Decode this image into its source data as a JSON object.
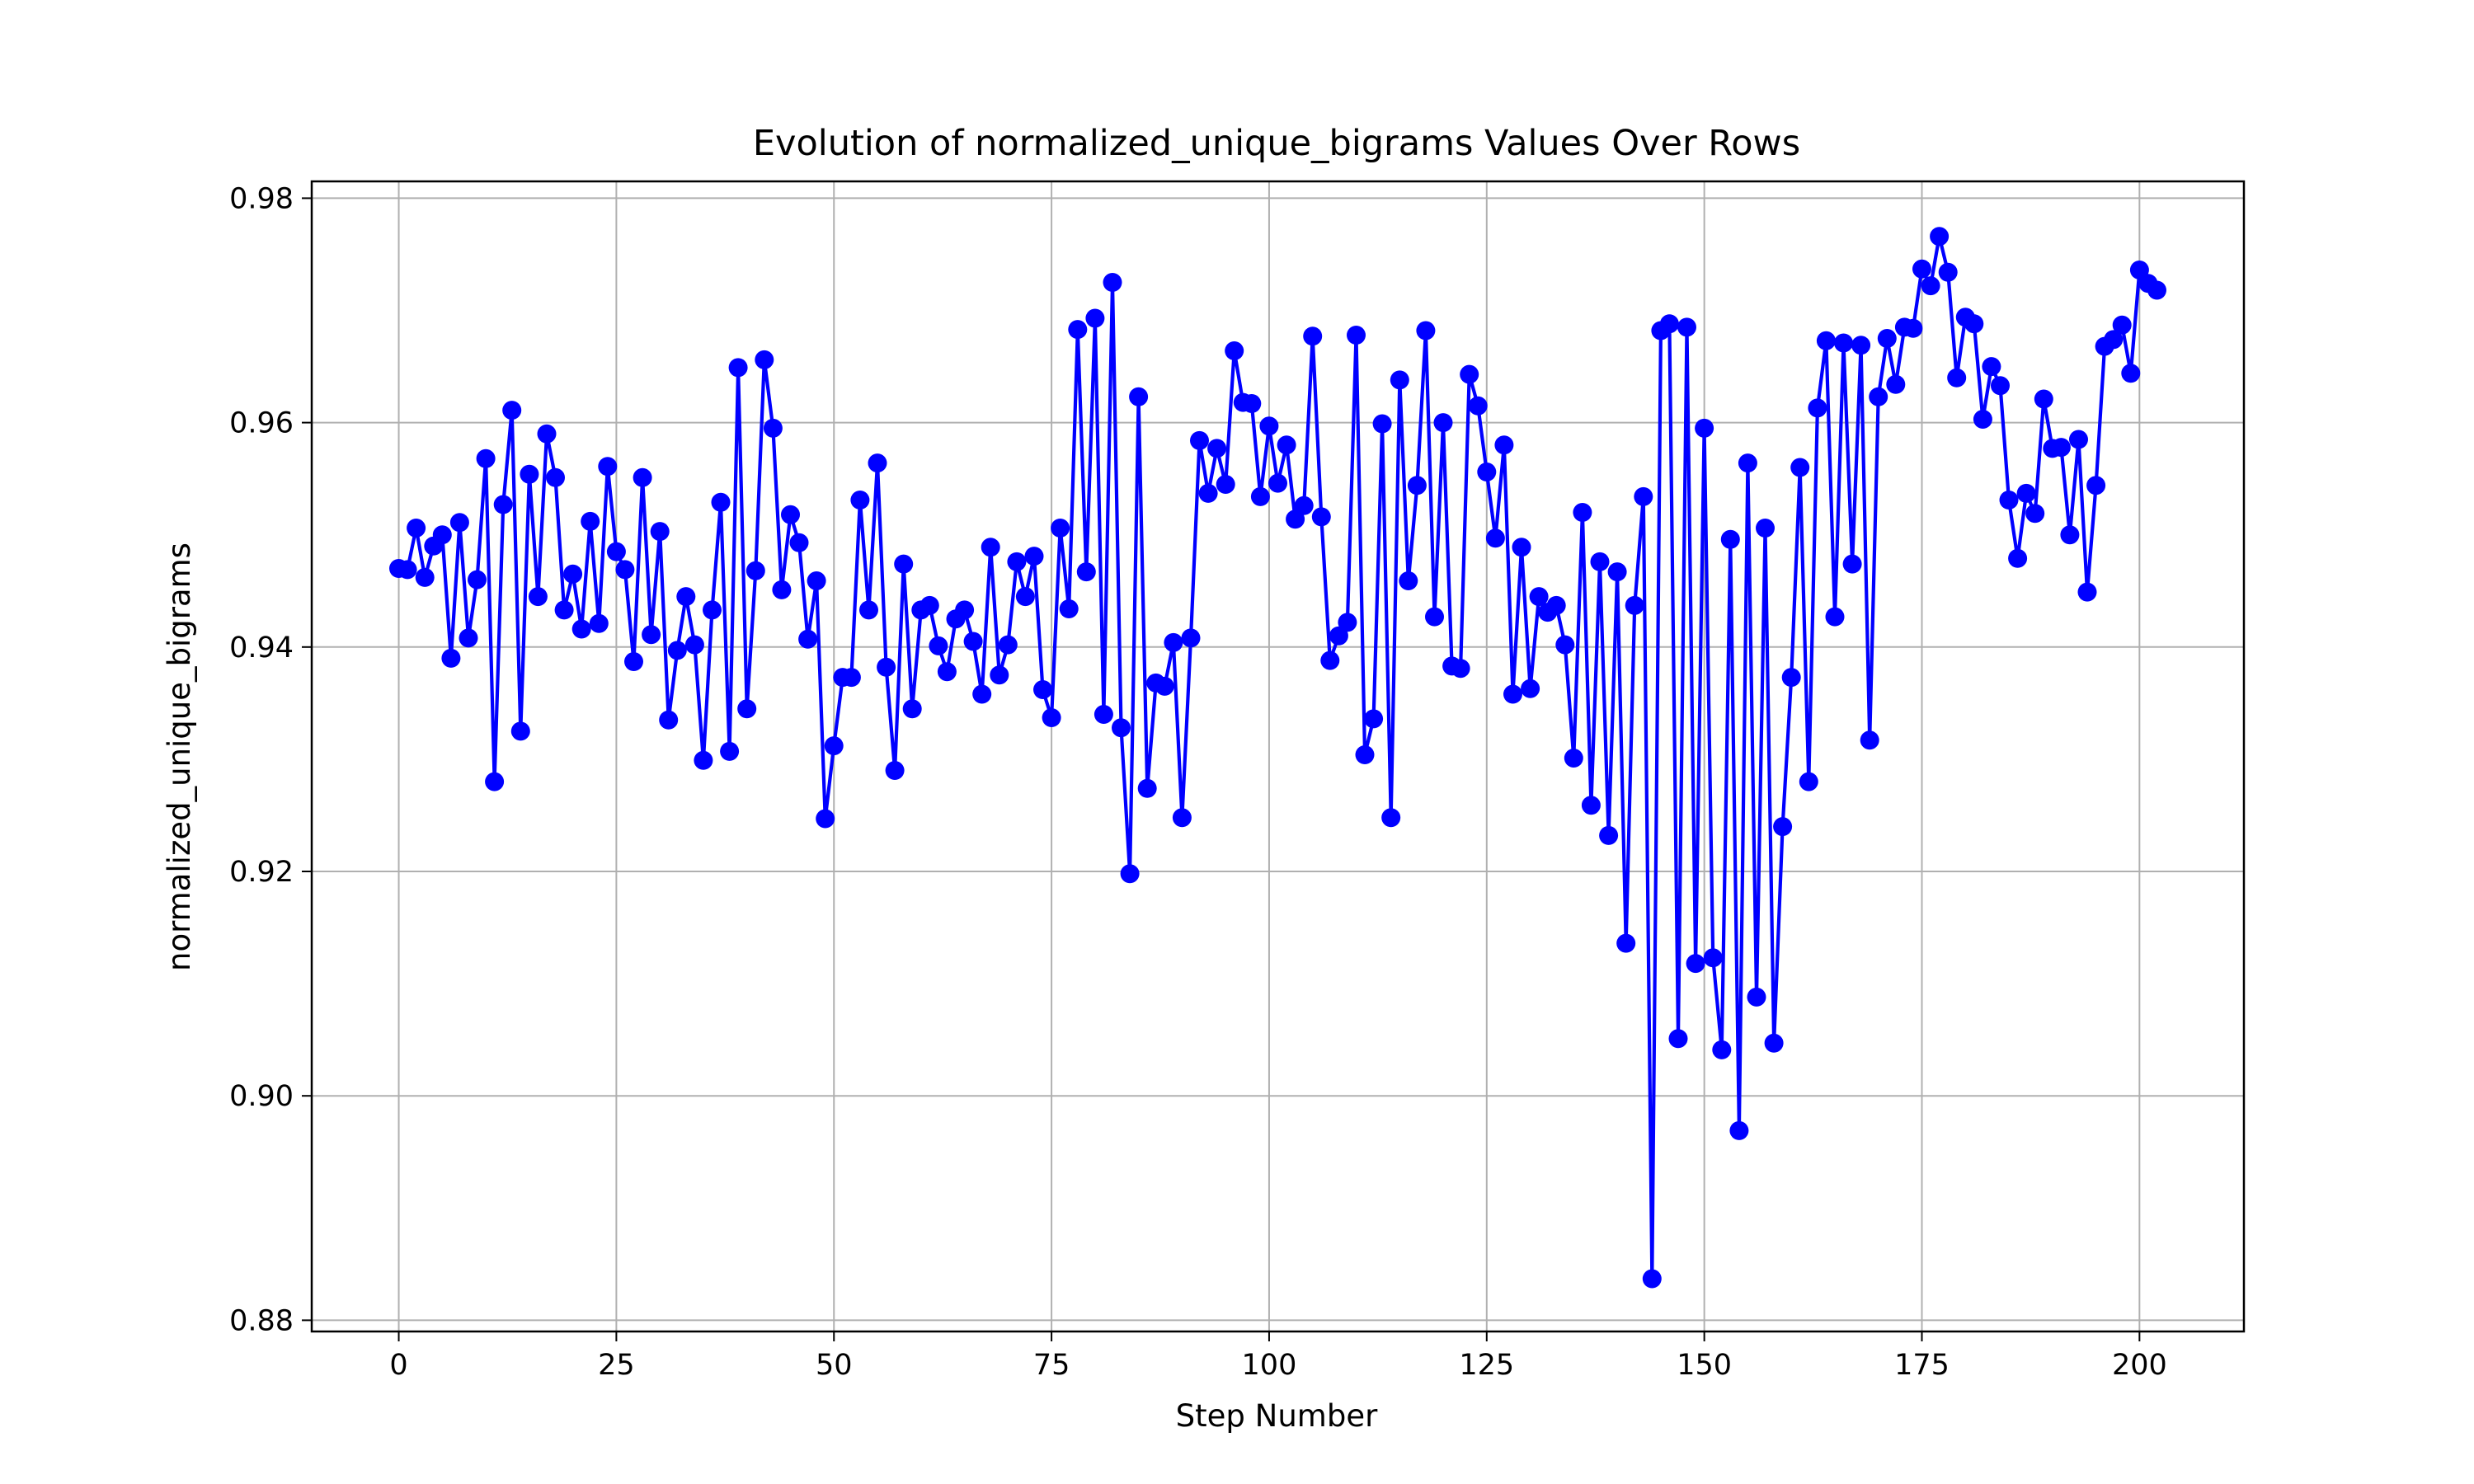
{
  "chart_data": {
    "type": "line",
    "title": "Evolution of normalized_unique_bigrams Values Over Rows",
    "xlabel": "Step Number",
    "ylabel": "normalized_unique_bigrams",
    "xlim": [
      -10,
      212
    ],
    "ylim": [
      0.879,
      0.9815
    ],
    "grid": true,
    "x_ticks": [
      0,
      25,
      50,
      75,
      100,
      125,
      150,
      175,
      200
    ],
    "x_tick_labels": [
      "0",
      "25",
      "50",
      "75",
      "100",
      "125",
      "150",
      "175",
      "200"
    ],
    "y_ticks": [
      0.88,
      0.9,
      0.92,
      0.94,
      0.96,
      0.98
    ],
    "y_tick_labels": [
      "0.88",
      "0.90",
      "0.92",
      "0.94",
      "0.96",
      "0.98"
    ],
    "series": [
      {
        "color": "#0000ff",
        "marker": "circle",
        "x_start": 0,
        "x_step": 1,
        "values": [
          0.947,
          0.9469,
          0.9506,
          0.9462,
          0.949,
          0.95,
          0.939,
          0.9511,
          0.9408,
          0.946,
          0.9568,
          0.928,
          0.9527,
          0.9611,
          0.9325,
          0.9554,
          0.9445,
          0.959,
          0.9551,
          0.9433,
          0.9465,
          0.9416,
          0.9512,
          0.9421,
          0.9561,
          0.9485,
          0.9469,
          0.9387,
          0.9551,
          0.9411,
          0.9503,
          0.9335,
          0.9397,
          0.9445,
          0.9402,
          0.9299,
          0.9433,
          0.9529,
          0.9307,
          0.9649,
          0.9345,
          0.9468,
          0.9656,
          0.9595,
          0.9451,
          0.9518,
          0.9493,
          0.9407,
          0.9459,
          0.9247,
          0.9312,
          0.9373,
          0.9373,
          0.9531,
          0.9433,
          0.9564,
          0.9382,
          0.929,
          0.9474,
          0.9345,
          0.9433,
          0.9437,
          0.9401,
          0.9378,
          0.9425,
          0.9433,
          0.9405,
          0.9358,
          0.9489,
          0.9375,
          0.9402,
          0.9476,
          0.9445,
          0.9481,
          0.9362,
          0.9337,
          0.9506,
          0.9434,
          0.9683,
          0.9467,
          0.9693,
          0.934,
          0.9725,
          0.9328,
          0.9198,
          0.9623,
          0.9274,
          0.9368,
          0.9365,
          0.9404,
          0.9248,
          0.9408,
          0.9584,
          0.9537,
          0.9577,
          0.9545,
          0.9664,
          0.9618,
          0.9617,
          0.9534,
          0.9597,
          0.9546,
          0.958,
          0.9514,
          0.9526,
          0.9677,
          0.9516,
          0.9388,
          0.941,
          0.9422,
          0.9678,
          0.9304,
          0.9336,
          0.9599,
          0.9248,
          0.9638,
          0.9459,
          0.9544,
          0.9682,
          0.9427,
          0.96,
          0.9383,
          0.9381,
          0.9643,
          0.9615,
          0.9556,
          0.9497,
          0.958,
          0.9358,
          0.9489,
          0.9363,
          0.9445,
          0.9431,
          0.9437,
          0.9402,
          0.9301,
          0.952,
          0.9259,
          0.9476,
          0.9232,
          0.9467,
          0.9136,
          0.9437,
          0.9534,
          0.8837,
          0.9682,
          0.9688,
          0.9051,
          0.9685,
          0.9118,
          0.9595,
          0.9123,
          0.9041,
          0.9496,
          0.8969,
          0.9564,
          0.9088,
          0.9506,
          0.9047,
          0.924,
          0.9373,
          0.956,
          0.928,
          0.9613,
          0.9673,
          0.9427,
          0.9671,
          0.9474,
          0.9669,
          0.9317,
          0.9623,
          0.9675,
          0.9634,
          0.9685,
          0.9684,
          0.9737,
          0.9722,
          0.9766,
          0.9734,
          0.964,
          0.9694,
          0.9688,
          0.9603,
          0.965,
          0.9633,
          0.9531,
          0.9479,
          0.9537,
          0.9519,
          0.9621,
          0.9577,
          0.9578,
          0.95,
          0.9585,
          0.9449,
          0.9544,
          0.9668,
          0.9674,
          0.9687,
          0.9644,
          0.9736,
          0.9724,
          0.9718
        ]
      }
    ]
  }
}
